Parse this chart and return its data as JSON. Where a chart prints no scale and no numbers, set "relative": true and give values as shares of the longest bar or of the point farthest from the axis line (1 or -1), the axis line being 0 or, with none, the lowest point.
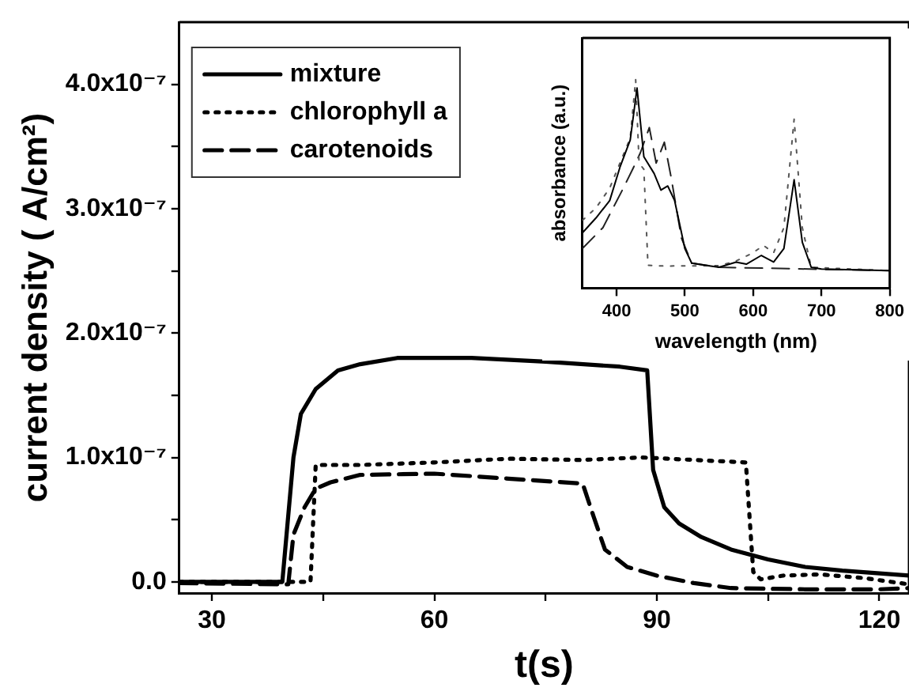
{
  "chart_data": [
    {
      "type": "line",
      "xlabel": "t(s)",
      "ylabel": "current density ( A/cm²)",
      "xlim": [
        25.6,
        124
      ],
      "ylim": [
        -9e-09,
        4.5e-07
      ],
      "xticks": [
        30,
        {
          "value": 45,
          "label": null
        },
        60,
        {
          "value": 75,
          "label": null
        },
        90,
        {
          "value": 105,
          "label": null
        },
        120
      ],
      "yticks": [
        {
          "value": 0,
          "label": "0.0"
        },
        {
          "value": 5e-08,
          "label": null
        },
        {
          "value": 1e-07,
          "label": "1.0x10⁻⁷"
        },
        {
          "value": 1.5e-07,
          "label": null
        },
        {
          "value": 2e-07,
          "label": "2.0x10⁻⁷"
        },
        {
          "value": 2.5e-07,
          "label": null
        },
        {
          "value": 3e-07,
          "label": "3.0x10⁻⁷"
        },
        {
          "value": 3.5e-07,
          "label": null
        },
        {
          "value": 4e-07,
          "label": "4.0x10⁻⁷"
        }
      ],
      "legend": "top left",
      "marker": "none",
      "series": [
        {
          "name": "mixture",
          "color": "#000000",
          "line_style": "solid",
          "x": [
            25.6,
            39.5,
            41,
            42,
            44,
            47,
            50,
            55,
            65,
            75,
            85,
            88.7,
            89.5,
            91,
            93,
            96,
            100,
            105,
            110,
            115,
            124
          ],
          "values": [
            0,
            0,
            1e-07,
            1.35e-07,
            1.55e-07,
            1.7e-07,
            1.75e-07,
            1.8e-07,
            1.8e-07,
            1.77e-07,
            1.73e-07,
            1.7e-07,
            9e-08,
            6e-08,
            4.7e-08,
            3.6e-08,
            2.6e-08,
            1.8e-08,
            1.2e-08,
            9e-09,
            5e-09
          ]
        },
        {
          "name": "chlorophyll a",
          "color": "#000000",
          "line_style": "dotted",
          "x": [
            25.6,
            43.3,
            44,
            50,
            60,
            70,
            80,
            88,
            95,
            102,
            103,
            104,
            107,
            112,
            118,
            124
          ],
          "values": [
            0,
            0,
            9.4e-08,
            9.4e-08,
            9.6e-08,
            9.9e-08,
            9.8e-08,
            1e-07,
            9.8e-08,
            9.6e-08,
            8e-09,
            2e-09,
            5e-09,
            6e-09,
            3e-09,
            -2e-09
          ]
        },
        {
          "name": "carotenoids",
          "color": "#000000",
          "line_style": "dashed",
          "x": [
            25.6,
            40.3,
            41,
            42.5,
            44,
            46,
            50,
            60,
            70,
            80,
            81.5,
            83,
            86,
            90,
            95,
            100,
            110,
            120,
            124
          ],
          "values": [
            -1e-09,
            -2e-09,
            3.8e-08,
            6e-08,
            7.5e-08,
            8e-08,
            8.6e-08,
            8.7e-08,
            8.3e-08,
            7.9e-08,
            5.2e-08,
            2.6e-08,
            1.2e-08,
            5e-09,
            -1e-09,
            -5e-09,
            -6e-09,
            -6e-09,
            -5e-09
          ]
        }
      ]
    },
    {
      "type": "line",
      "xlabel": "wavelength (nm)",
      "ylabel": "absorbance (a.u.)",
      "relative": true,
      "xlim": [
        350,
        800
      ],
      "xticks": [
        400,
        500,
        600,
        700,
        800
      ],
      "marker": "none",
      "series": [
        {
          "color": "#000000",
          "line_style": "solid",
          "x": [
            350,
            370,
            390,
            405,
            420,
            430,
            440,
            455,
            465,
            475,
            485,
            500,
            510,
            530,
            550,
            575,
            590,
            612,
            630,
            645,
            660,
            672,
            685,
            700,
            800
          ],
          "values": [
            0.265,
            0.337,
            0.42,
            0.58,
            0.71,
            0.96,
            0.63,
            0.55,
            0.47,
            0.49,
            0.42,
            0.19,
            0.12,
            0.11,
            0.1,
            0.125,
            0.115,
            0.157,
            0.125,
            0.19,
            0.52,
            0.22,
            0.1,
            0.092,
            0.084
          ]
        },
        {
          "color": "#555555",
          "line_style": "dotted",
          "x": [
            350,
            370,
            390,
            410,
            420,
            428,
            433,
            440,
            446,
            470,
            550,
            575,
            600,
            615,
            630,
            645,
            660,
            672,
            685,
            800
          ],
          "values": [
            0.325,
            0.385,
            0.48,
            0.64,
            0.72,
            1,
            0.6,
            0.57,
            0.11,
            0.106,
            0.108,
            0.13,
            0.17,
            0.205,
            0.17,
            0.29,
            0.81,
            0.29,
            0.1,
            0.084
          ]
        },
        {
          "color": "#222222",
          "line_style": "dashed",
          "x": [
            350,
            380,
            410,
            425,
            435,
            448,
            458,
            470,
            480,
            495,
            510,
            550,
            800
          ],
          "values": [
            0.19,
            0.29,
            0.48,
            0.58,
            0.65,
            0.77,
            0.6,
            0.7,
            0.53,
            0.24,
            0.12,
            0.1,
            0.084
          ]
        }
      ]
    }
  ]
}
